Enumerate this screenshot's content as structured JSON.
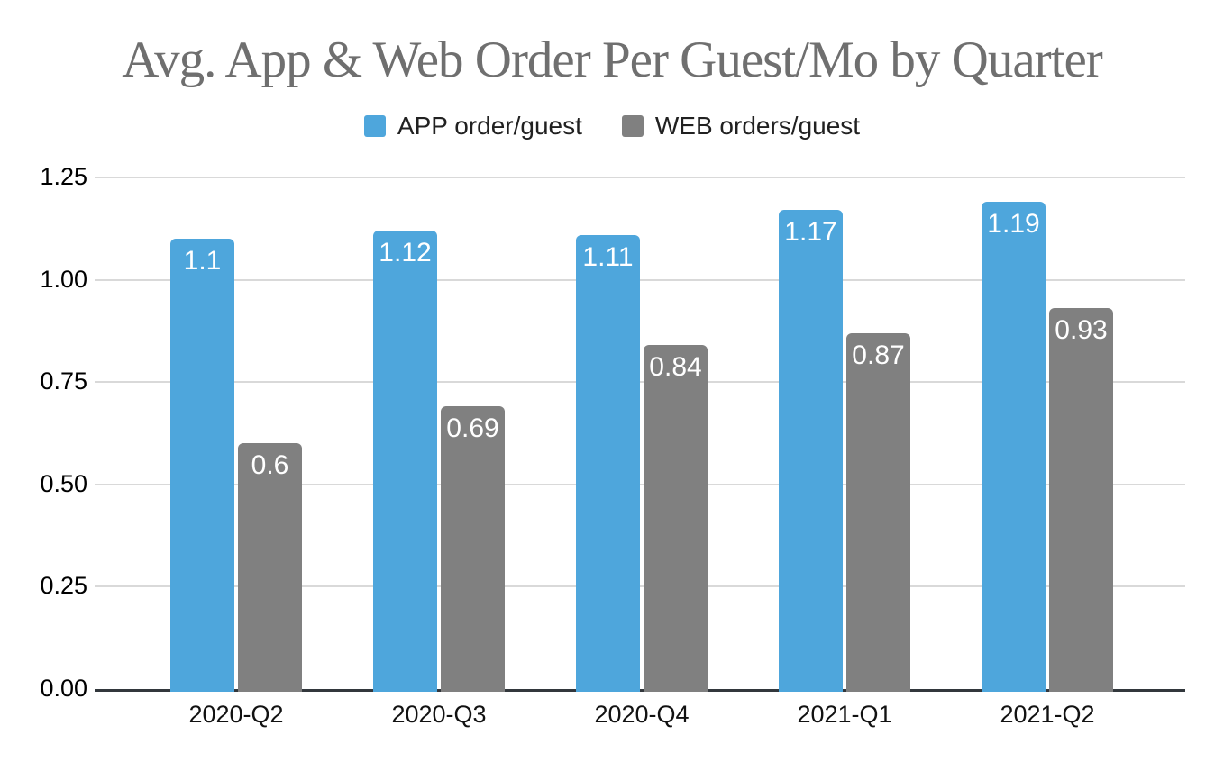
{
  "chart_data": {
    "type": "bar",
    "title": "Avg. App & Web Order Per Guest/Mo by Quarter",
    "xlabel": "",
    "ylabel": "",
    "categories": [
      "2020-Q2",
      "2020-Q3",
      "2020-Q4",
      "2021-Q1",
      "2021-Q2"
    ],
    "series": [
      {
        "name": "APP order/guest",
        "color": "#4ea6dc",
        "values": [
          1.1,
          1.12,
          1.11,
          1.17,
          1.19
        ]
      },
      {
        "name": "WEB orders/guest",
        "color": "#808080",
        "values": [
          0.6,
          0.69,
          0.84,
          0.87,
          0.93
        ]
      }
    ],
    "y_ticks": [
      {
        "label": "0.00",
        "value": 0.0
      },
      {
        "label": "0.25",
        "value": 0.25
      },
      {
        "label": "0.50",
        "value": 0.5
      },
      {
        "label": "0.75",
        "value": 0.75
      },
      {
        "label": "1.00",
        "value": 1.0
      },
      {
        "label": "1.25",
        "value": 1.25
      }
    ],
    "ylim": [
      0,
      1.25
    ],
    "grid": true,
    "legend_position": "top",
    "value_labels": true,
    "colors": {
      "title_text": "#6f6f6f",
      "legend_text": "#212121",
      "axis_tick_text": "#000000",
      "gridline": "#d9d9d9",
      "baseline": "#32373c",
      "value_label_text": "#ffffff",
      "background": "#ffffff"
    }
  }
}
